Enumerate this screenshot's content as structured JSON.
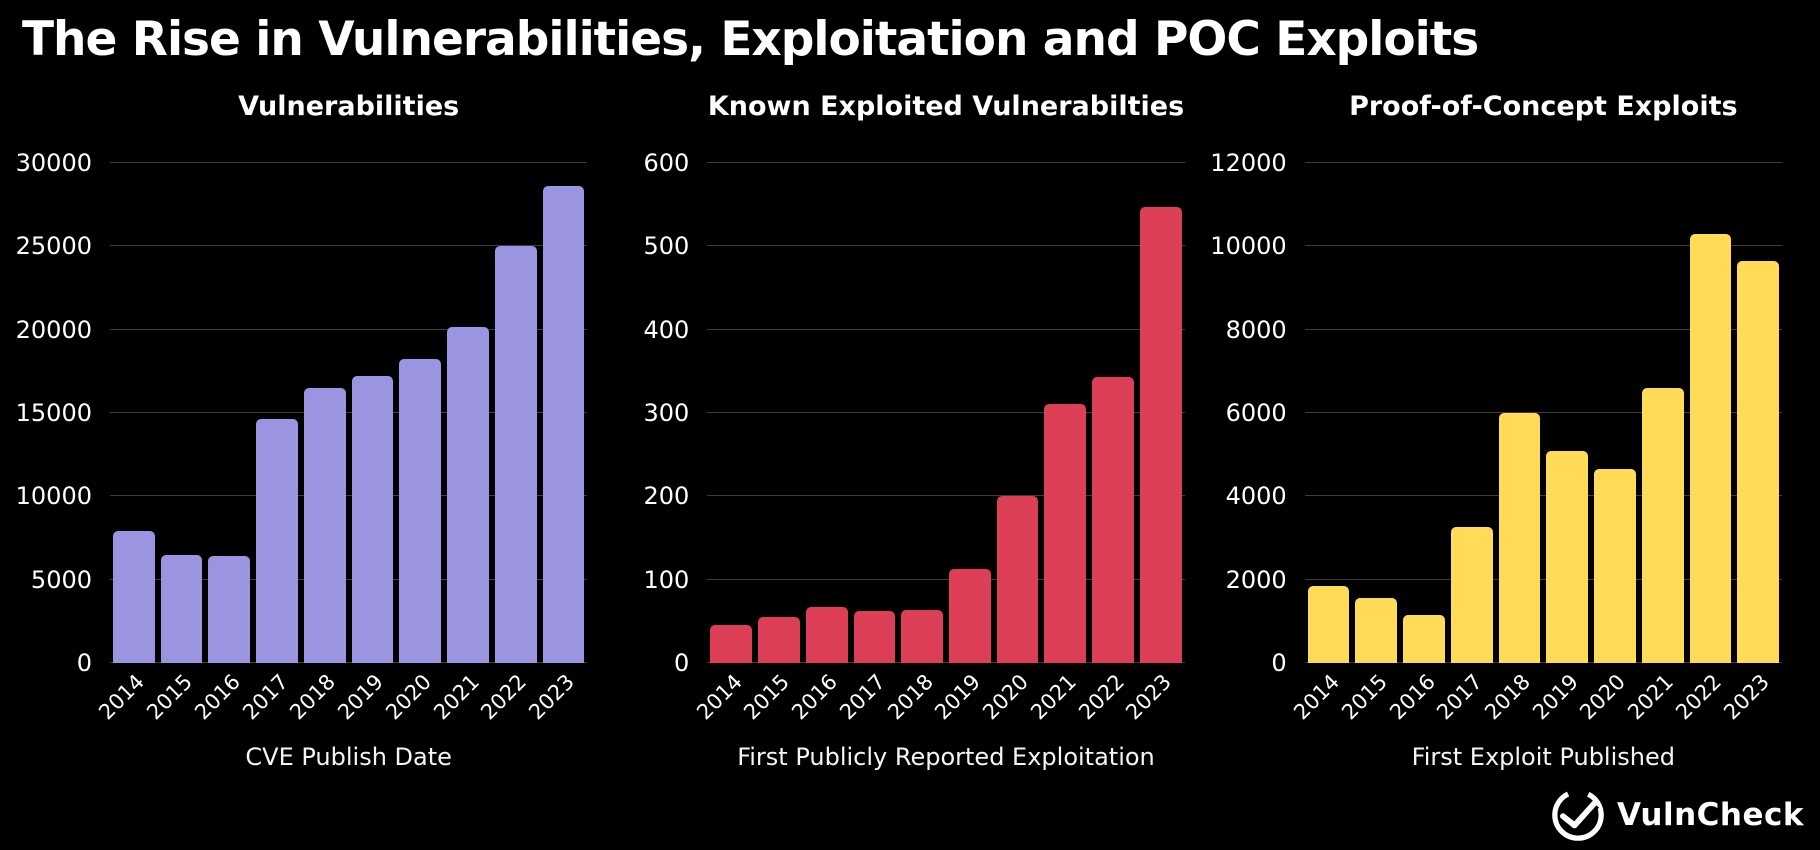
{
  "page": {
    "title": "The Rise in Vulnerabilities, Exploitation and POC Exploits",
    "background_color": "#000000",
    "text_color": "#ffffff",
    "grid_color": "#3d3d3d"
  },
  "branding": {
    "logo_text": "VulnCheck",
    "logo_icon": "check-circle"
  },
  "chart_data": [
    {
      "type": "bar",
      "title": "Vulnerabilities",
      "xlabel": "CVE Publish Date",
      "ylabel": "",
      "categories": [
        "2014",
        "2015",
        "2016",
        "2017",
        "2018",
        "2019",
        "2020",
        "2021",
        "2022",
        "2023"
      ],
      "values": [
        7900,
        6500,
        6400,
        14650,
        16500,
        17250,
        18250,
        20150,
        25050,
        28600
      ],
      "ylim": [
        0,
        30000
      ],
      "yticks": [
        0,
        5000,
        10000,
        15000,
        20000,
        25000,
        30000
      ],
      "bar_color": "#9b95e1",
      "grid": true,
      "legend": false
    },
    {
      "type": "bar",
      "title": "Known Exploited Vulnerabilties",
      "xlabel": "First Publicly Reported Exploitation",
      "ylabel": "",
      "categories": [
        "2014",
        "2015",
        "2016",
        "2017",
        "2018",
        "2019",
        "2020",
        "2021",
        "2022",
        "2023"
      ],
      "values": [
        46,
        55,
        67,
        63,
        64,
        113,
        201,
        311,
        343,
        547
      ],
      "ylim": [
        0,
        600
      ],
      "yticks": [
        0,
        100,
        200,
        300,
        400,
        500,
        600
      ],
      "bar_color": "#dd4056",
      "grid": true,
      "legend": false
    },
    {
      "type": "bar",
      "title": "Proof-of-Concept Exploits",
      "xlabel": "First Exploit Published",
      "ylabel": "",
      "categories": [
        "2014",
        "2015",
        "2016",
        "2017",
        "2018",
        "2019",
        "2020",
        "2021",
        "2022",
        "2023"
      ],
      "values": [
        1850,
        1550,
        1150,
        3270,
        5990,
        5100,
        4650,
        6590,
        10300,
        9650
      ],
      "ylim": [
        0,
        12000
      ],
      "yticks": [
        0,
        2000,
        4000,
        6000,
        8000,
        10000,
        12000
      ],
      "bar_color": "#ffdb57",
      "grid": true,
      "legend": false
    }
  ]
}
